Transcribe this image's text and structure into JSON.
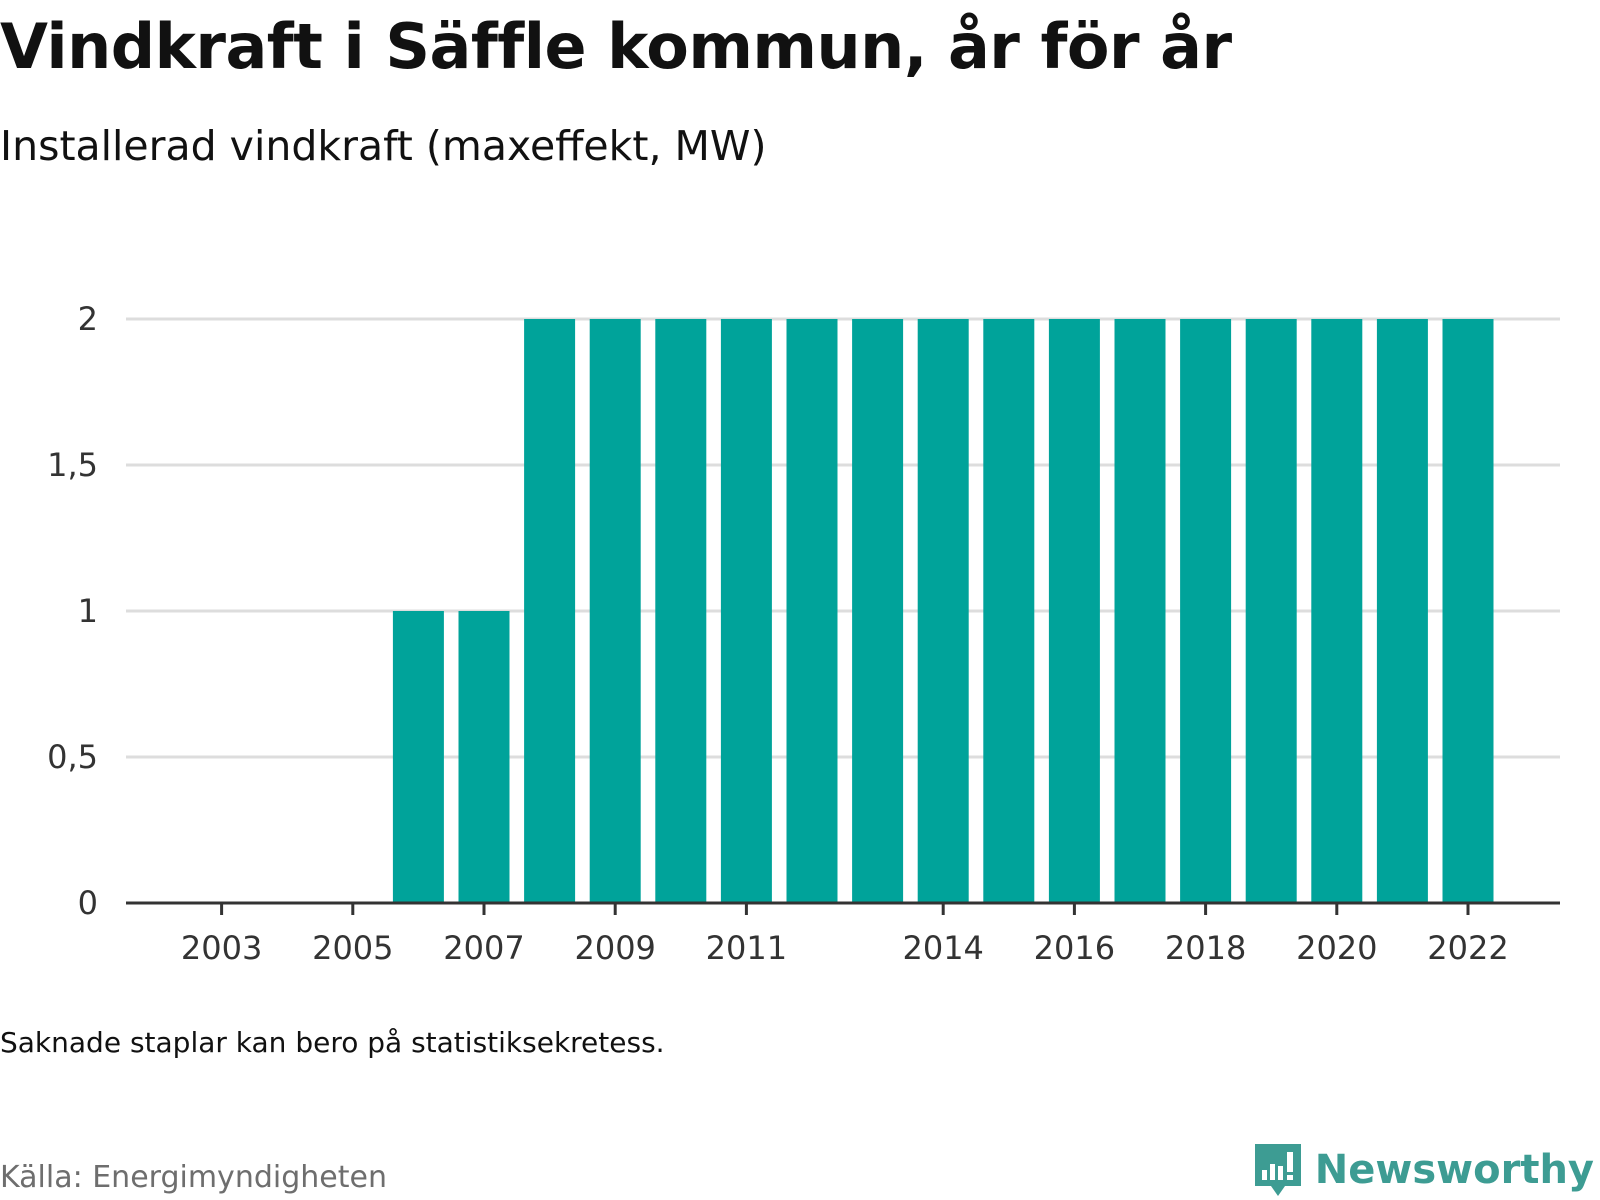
{
  "header": {
    "title": "Vindkraft i Säffle kommun, år för år",
    "subtitle": "Installerad vindkraft (maxeffekt, MW)"
  },
  "footer": {
    "note": "Saknade staplar kan bero på statistiksekretess.",
    "source": "Källa: Energimyndigheten",
    "brand": "Newsworthy"
  },
  "colors": {
    "bar": "#00a39a",
    "grid": "#dddddd",
    "axis": "#333333",
    "brand": "#3d9c93",
    "source": "#6e6e6e"
  },
  "chart_data": {
    "type": "bar",
    "title": "Vindkraft i Säffle kommun, år för år",
    "subtitle": "Installerad vindkraft (maxeffekt, MW)",
    "categories": [
      "2002",
      "2003",
      "2004",
      "2005",
      "2006",
      "2007",
      "2008",
      "2009",
      "2010",
      "2011",
      "2012",
      "2013",
      "2014",
      "2015",
      "2016",
      "2017",
      "2018",
      "2019",
      "2020",
      "2021",
      "2022"
    ],
    "values": [
      null,
      null,
      null,
      null,
      1,
      1,
      2,
      2,
      2,
      2,
      2,
      2,
      2,
      2,
      2,
      2,
      2,
      2,
      2,
      2,
      2
    ],
    "x_tick_labels": [
      "2003",
      "2005",
      "2007",
      "2009",
      "2011",
      "2014",
      "2016",
      "2018",
      "2020",
      "2022"
    ],
    "y_ticks": [
      0,
      0.5,
      1,
      1.5,
      2
    ],
    "y_tick_labels": [
      "0",
      "0,5",
      "1",
      "1,5",
      "2"
    ],
    "ylim": [
      0,
      2
    ],
    "grid": true,
    "legend": "none"
  }
}
